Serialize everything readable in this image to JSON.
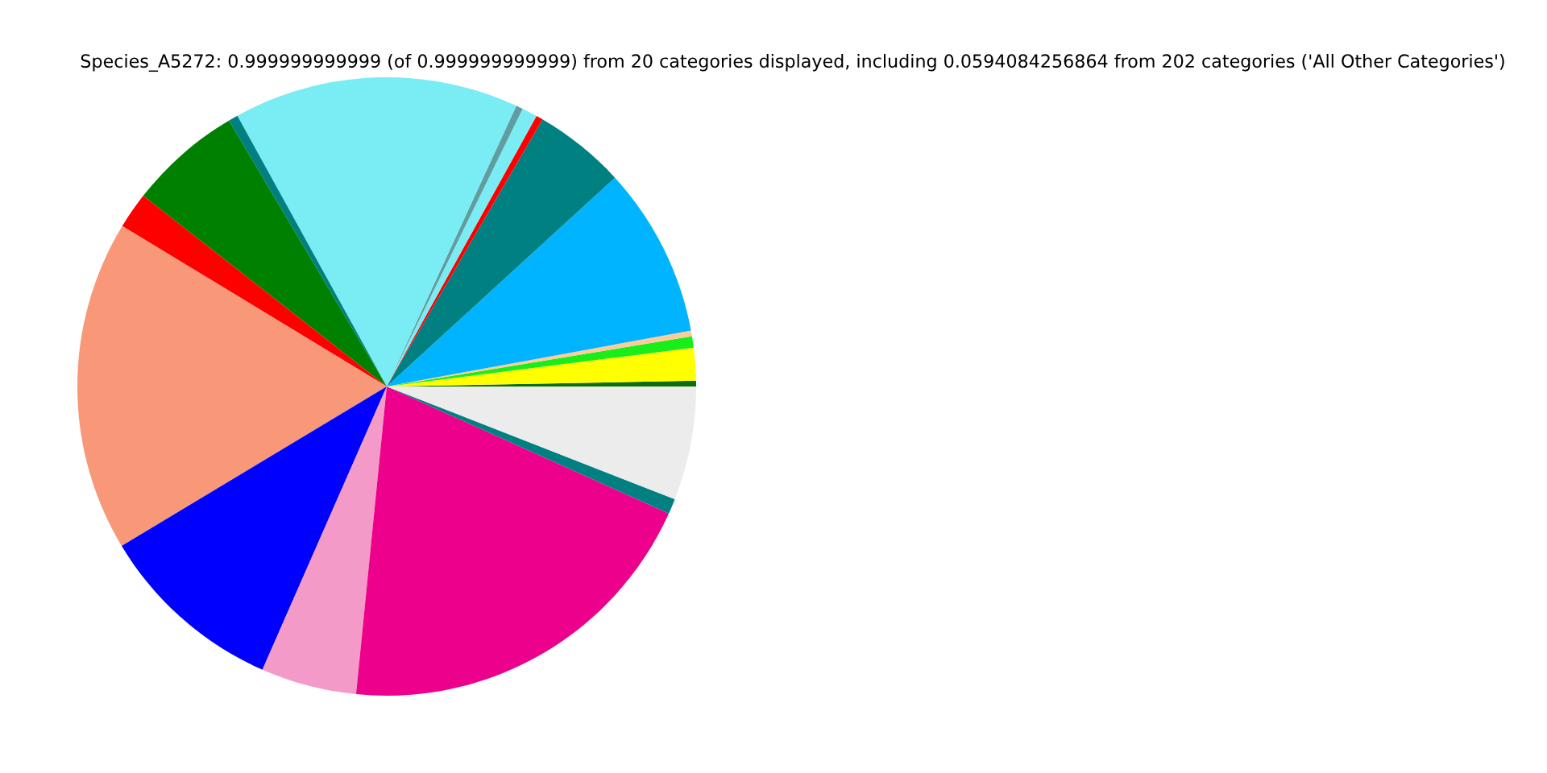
{
  "chart_data": {
    "type": "pie",
    "title": "Species_A5272: 0.999999999999 (of 0.999999999999) from 20 categories displayed, including 0.0594084256864 from 202 categories ('All Other Categories')",
    "categories": [
      null,
      null,
      null,
      null,
      null,
      null,
      null,
      null,
      null,
      null,
      null,
      null,
      null,
      null,
      null,
      null,
      null,
      null,
      null
    ],
    "values": [
      0.3,
      1.7,
      0.6,
      0.3,
      8.9,
      4.8,
      0.36,
      0.8,
      0.36,
      14.9,
      0.5,
      5.9,
      1.9,
      17.3,
      9.8,
      5.0,
      19.84,
      0.8,
      5.94
    ],
    "colors": [
      "#0a6e0a",
      "#ffff00",
      "#1aee1a",
      "#ffcc99",
      "#00b4ff",
      "#008080",
      "#ff0000",
      "#7aecf4",
      "#5f9ea0",
      "#7aecf4",
      "#008080",
      "#008000",
      "#ff0000",
      "#f89878",
      "#0000ff",
      "#f49ac8",
      "#ec008c",
      "#008080",
      "#ececec"
    ]
  }
}
